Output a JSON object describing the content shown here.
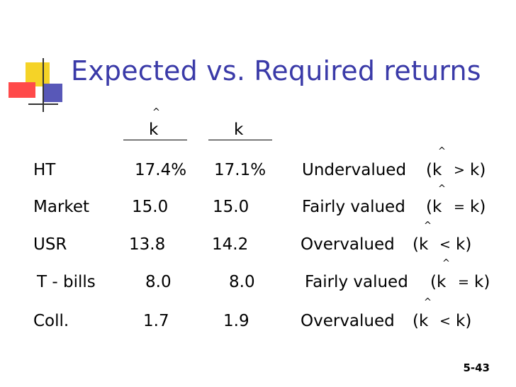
{
  "slide": {
    "title": "Expected vs. Required returns",
    "page_number": "5-43"
  },
  "table": {
    "headers": {
      "expected": "k",
      "required": "k"
    },
    "rows": [
      {
        "name": "HT",
        "expected": "17.4%",
        "required": "17.1%",
        "valuation": "Undervalued",
        "rel_open": "(k",
        "relation": ">",
        "rel_close": "k)"
      },
      {
        "name": "Market",
        "expected": "15.0",
        "required": "15.0",
        "valuation": "Fairly valued",
        "rel_open": "(k",
        "relation": "=",
        "rel_close": "k)"
      },
      {
        "name": "USR",
        "expected": "13.8",
        "required": "14.2",
        "valuation": "Overvalued",
        "rel_open": "(k",
        "relation": "<",
        "rel_close": "k)"
      },
      {
        "name": "T - bills",
        "expected": "8.0",
        "required": "8.0",
        "valuation": "Fairly valued",
        "rel_open": "(k",
        "relation": "=",
        "rel_close": "k)"
      },
      {
        "name": "Coll.",
        "expected": "1.7",
        "required": "1.9",
        "valuation": "Overvalued",
        "rel_open": "(k",
        "relation": "<",
        "rel_close": "k)"
      }
    ]
  },
  "symbols": {
    "hat": "^"
  },
  "colors": {
    "title": "#3a3aa8",
    "logo_yellow": "#f5d327",
    "logo_red": "#ff4040",
    "logo_blue": "#4a4ab0"
  }
}
